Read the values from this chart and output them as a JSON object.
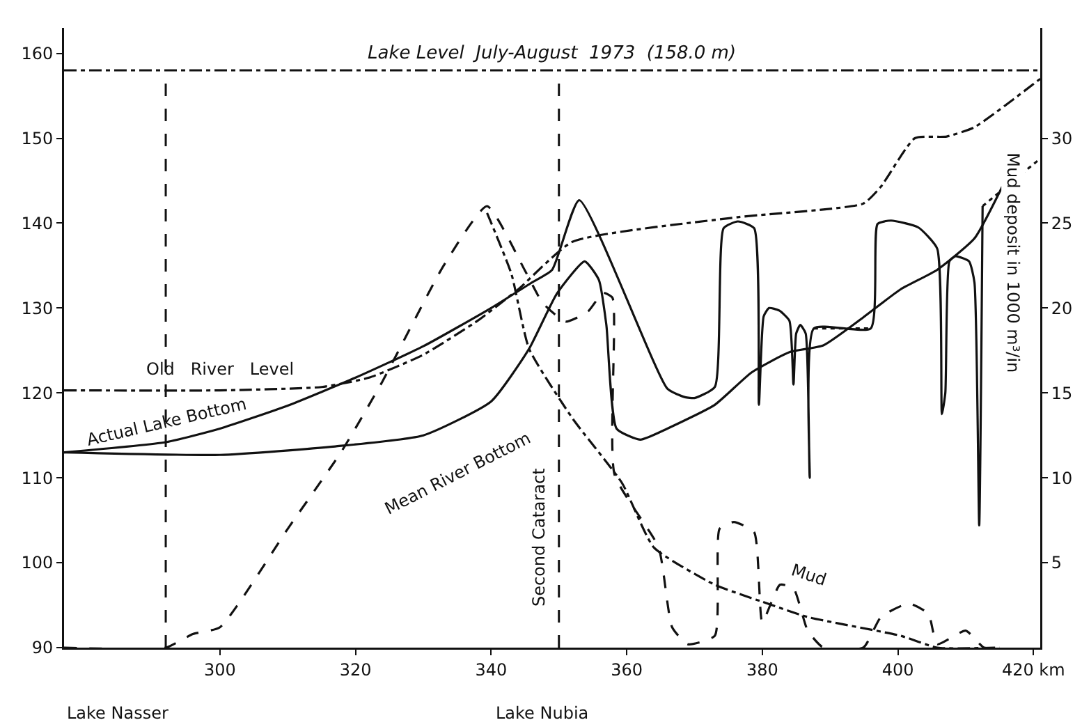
{
  "chart_data": {
    "type": "line",
    "xlabel": null,
    "y2label": "Mud deposit in 1000 m³/in",
    "xlim": [
      277,
      421
    ],
    "xticks": [
      300,
      320,
      340,
      360,
      380,
      400,
      {
        "value": 420,
        "label": "420 km"
      }
    ],
    "ylim": [
      90,
      163
    ],
    "yticks": [
      90,
      100,
      110,
      120,
      130,
      140,
      150,
      160
    ],
    "y2lim": [
      0,
      36.5
    ],
    "y2ticks": [
      5,
      10,
      15,
      20,
      25,
      30
    ],
    "grid": false,
    "marker": "none",
    "series": [
      {
        "color": "#111111",
        "line_style": "dashdot",
        "x": [
          277,
          300,
          315,
          322,
          330,
          338,
          344,
          352,
          376.4,
          394.9,
          397.5,
          402.5,
          407.2,
          411.3,
          421
        ],
        "values": [
          120.3,
          120.3,
          120.7,
          121.8,
          124.5,
          128.5,
          132.2,
          137.8,
          140.7,
          142.3,
          144.3,
          150,
          150.2,
          151.3,
          157
        ]
      },
      {
        "color": "#111111",
        "line_style": "solid",
        "x": [
          277,
          292,
          300,
          310,
          320,
          330,
          340,
          346,
          349,
          353,
          366,
          368.6,
          370,
          373,
          374.3,
          376.4,
          378.8,
          379.5,
          380.2,
          381,
          382.5,
          384,
          384.6,
          385,
          385.6,
          386.4,
          387,
          387.6,
          396,
          397,
          399,
          403,
          405.8,
          406.5,
          407,
          407.6,
          408.5,
          410.5,
          411.3,
          412,
          412.5
        ],
        "values": [
          113,
          114.2,
          115.8,
          118.5,
          121.8,
          125.5,
          130,
          133,
          134.5,
          142.7,
          120.5,
          119.5,
          119.4,
          120.7,
          139.4,
          140.2,
          139.4,
          118.6,
          129,
          130,
          129.7,
          128.5,
          121,
          127,
          128,
          127,
          110,
          127.6,
          127.6,
          139.9,
          140.3,
          139.5,
          137,
          117.5,
          120,
          135.5,
          136.1,
          135.5,
          133,
          104.4,
          142
        ]
      },
      {
        "color": "#111111",
        "line_style": "solid",
        "x": [
          277,
          300,
          317,
          330,
          340,
          345.6,
          349.7,
          353.8,
          355.9,
          357,
          358.5,
          362,
          366,
          373,
          378.4,
          384,
          389,
          394.9,
          400.4,
          405.8,
          411.3,
          415.4
        ],
        "values": [
          113,
          112.7,
          113.7,
          115,
          119,
          125.2,
          131.7,
          135.5,
          133.3,
          128,
          115.8,
          114.5,
          115.8,
          118.6,
          122.4,
          124.8,
          125.6,
          128.9,
          132.2,
          134.5,
          138.2,
          144.3
        ]
      },
      {
        "color": "#111111",
        "line_style": "dotted",
        "x": [
          387.6,
          396,
          null,
          412.5,
          421
        ],
        "values": [
          127.6,
          127.6,
          null,
          142,
          147.6
        ]
      },
      {
        "color": "#111111",
        "line_style": "dashed",
        "axis": "y2",
        "x": [
          277,
          292,
          296,
          300,
          310,
          318,
          324,
          333,
          339.4,
          345,
          347.6,
          351,
          354.3,
          356.5,
          357.9,
          358.2,
          364.7,
          366.7,
          369,
          373,
          373.7,
          375.8,
          378.8,
          380,
          382.6,
          384.6,
          386.7,
          389,
          394.9,
          397.5,
          401.6,
          404.5,
          405.8,
          410,
          412.7,
          415
        ],
        "values": [
          0,
          0,
          0.8,
          1.2,
          7,
          11.6,
          15.7,
          22.5,
          26,
          22.2,
          20.3,
          19.2,
          19.8,
          20.9,
          20.6,
          10.2,
          5.9,
          1.2,
          0.2,
          0.7,
          7,
          7.4,
          6.8,
          1.5,
          3.7,
          3.5,
          1,
          0,
          0,
          1.8,
          2.6,
          2,
          0.2,
          1,
          0,
          0
        ]
      },
      {
        "color": "#111111",
        "line_style": "dashdot",
        "axis": "y2",
        "x": [
          339.4,
          343,
          345.6,
          352,
          359.3,
          364,
          373,
          380,
          386.7,
          400.4,
          405.8,
          415
        ],
        "values": [
          25.6,
          22,
          17.6,
          13.5,
          9.7,
          5.9,
          3.7,
          2.7,
          1.8,
          0.7,
          0,
          0
        ]
      }
    ],
    "ref_lines": [
      {
        "axis": "y",
        "value": 158,
        "label": "Lake Level  July-August  1973  (158.0 m)",
        "line_style": "dashdot",
        "color": "#111111"
      },
      {
        "axis": "x",
        "value": 292,
        "label": null,
        "line_style": "dashed",
        "color": "#111111"
      },
      {
        "axis": "x",
        "value": 350,
        "label": null,
        "line_style": "dashed",
        "color": "#111111"
      }
    ],
    "annotations": [
      "Old   River   Level",
      "Actual Lake Bottom",
      "Mean River Bottom",
      "Second Cataract",
      "Mud",
      "Lake Nasser",
      "Lake Nubia"
    ]
  }
}
